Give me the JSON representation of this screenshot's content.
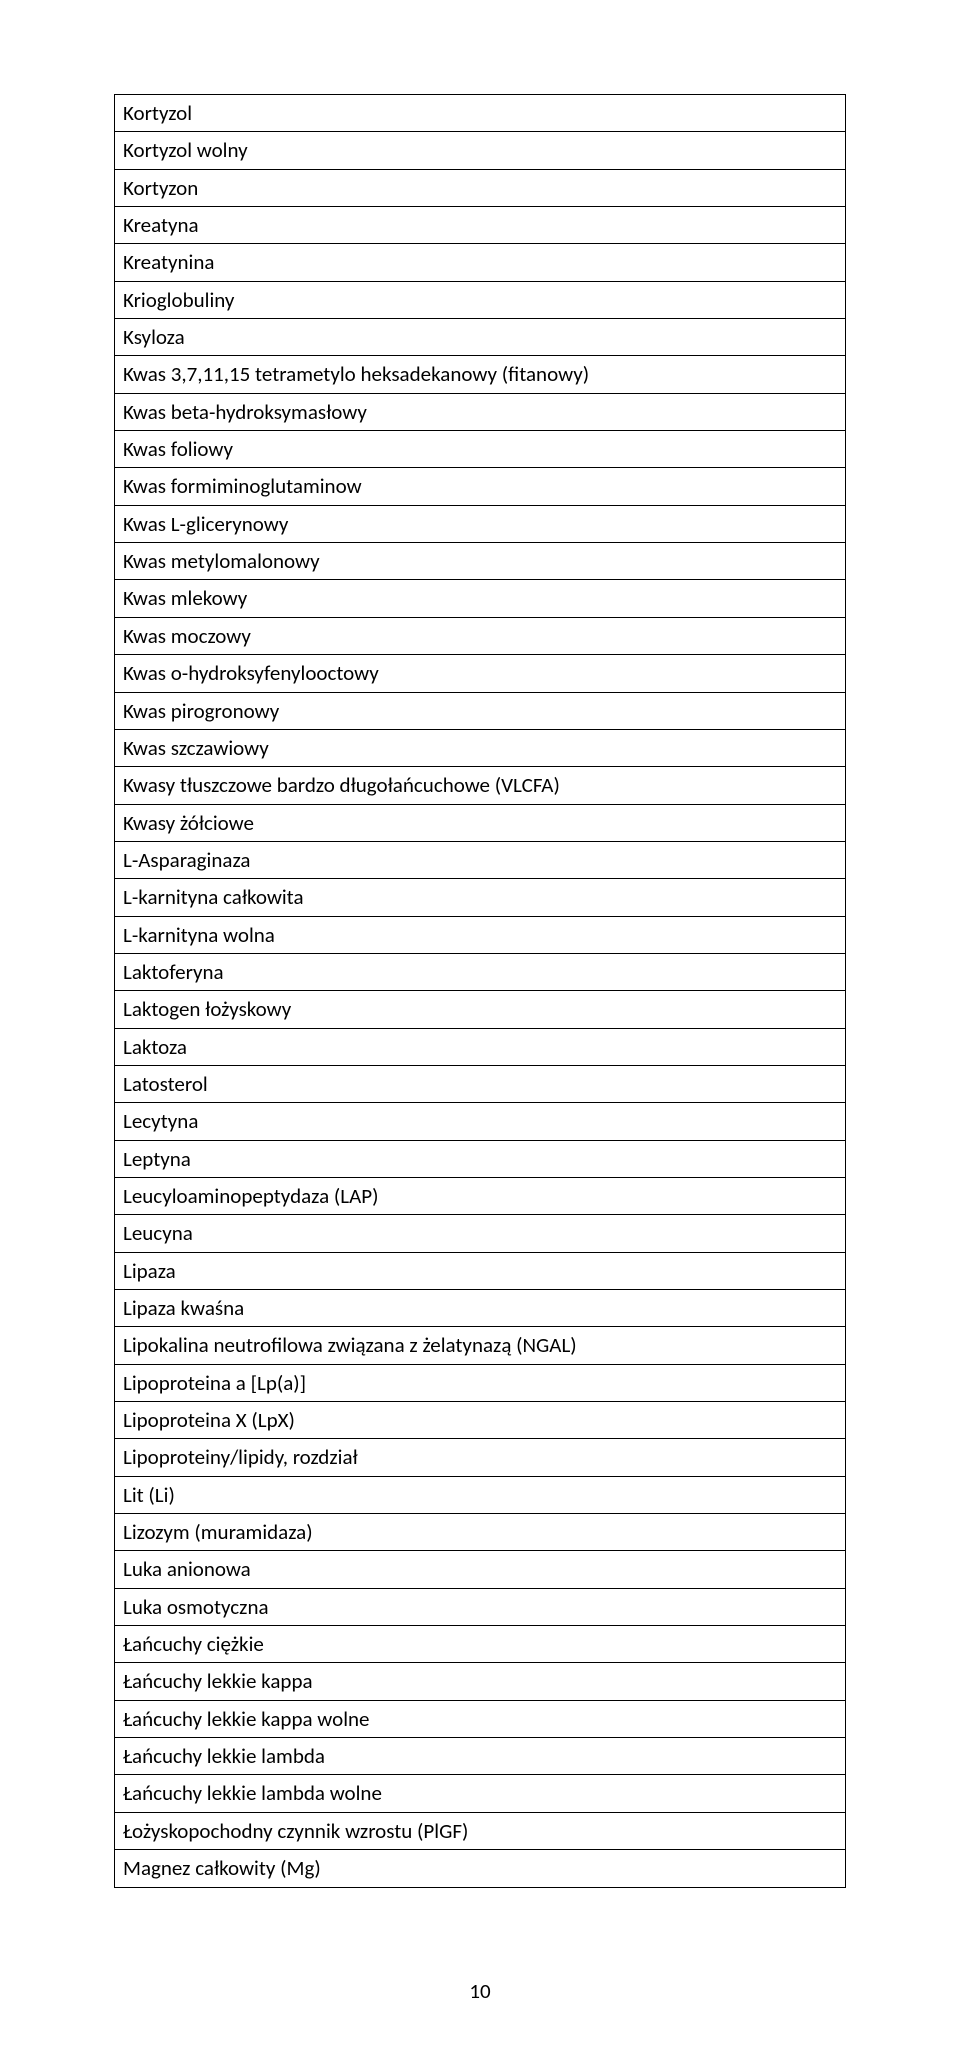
{
  "page_number": "10",
  "rows": [
    {
      "text": "Kortyzol",
      "indent": false
    },
    {
      "text": "Kortyzol wolny",
      "indent": false
    },
    {
      "text": "Kortyzon",
      "indent": false
    },
    {
      "text": "Kreatyna",
      "indent": false
    },
    {
      "text": "Kreatynina",
      "indent": false
    },
    {
      "text": "Krioglobuliny",
      "indent": false
    },
    {
      "text": "Ksyloza",
      "indent": false
    },
    {
      "text": "Kwas 3,7,11,15 tetrametylo heksadekanowy (fitanowy)",
      "indent": false
    },
    {
      "text": "Kwas beta-hydroksymasłowy",
      "indent": false
    },
    {
      "text": "Kwas foliowy",
      "indent": false
    },
    {
      "text": "Kwas formiminoglutaminow",
      "indent": false
    },
    {
      "text": "Kwas L-glicerynowy",
      "indent": false
    },
    {
      "text": "Kwas metylomalonowy",
      "indent": false
    },
    {
      "text": "Kwas mlekowy",
      "indent": false
    },
    {
      "text": "Kwas moczowy",
      "indent": false
    },
    {
      "text": "Kwas o-hydroksyfenylooctowy",
      "indent": false
    },
    {
      "text": "Kwas pirogronowy",
      "indent": false
    },
    {
      "text": "Kwas szczawiowy",
      "indent": false
    },
    {
      "text": "Kwasy tłuszczowe bardzo długołańcuchowe (VLCFA)",
      "indent": false
    },
    {
      "text": "Kwasy żółciowe",
      "indent": false
    },
    {
      "text": "L-Asparaginaza",
      "indent": false
    },
    {
      "text": "L-karnityna całkowita",
      "indent": false
    },
    {
      "text": "L-karnityna wolna",
      "indent": false
    },
    {
      "text": "Laktoferyna",
      "indent": false
    },
    {
      "text": "Laktogen łożyskowy",
      "indent": false
    },
    {
      "text": "Laktoza",
      "indent": false
    },
    {
      "text": "Latosterol",
      "indent": false
    },
    {
      "text": "Lecytyna",
      "indent": false
    },
    {
      "text": "Leptyna",
      "indent": false
    },
    {
      "text": "Leucyloaminopeptydaza (LAP)",
      "indent": false
    },
    {
      "text": "Leucyna",
      "indent": false
    },
    {
      "text": "Lipaza",
      "indent": false
    },
    {
      "text": "Lipaza kwaśna",
      "indent": false
    },
    {
      "text": "Lipokalina neutrofilowa związana z żelatynazą (NGAL)",
      "indent": false
    },
    {
      "text": "Lipoproteina a [Lp(a)]",
      "indent": true
    },
    {
      "text": "Lipoproteina X (LpX)",
      "indent": false
    },
    {
      "text": "Lipoproteiny/lipidy, rozdział",
      "indent": false
    },
    {
      "text": "Lit (Li)",
      "indent": false
    },
    {
      "text": "Lizozym (muramidaza)",
      "indent": false
    },
    {
      "text": "Luka anionowa",
      "indent": false
    },
    {
      "text": "Luka osmotyczna",
      "indent": false
    },
    {
      "text": "Łańcuchy ciężkie",
      "indent": false
    },
    {
      "text": "Łańcuchy lekkie kappa",
      "indent": false
    },
    {
      "text": "Łańcuchy lekkie kappa wolne",
      "indent": false
    },
    {
      "text": "Łańcuchy lekkie lambda",
      "indent": false
    },
    {
      "text": "Łańcuchy lekkie lambda wolne",
      "indent": false
    },
    {
      "text": "Łożyskopochodny czynnik wzrostu (PlGF)",
      "indent": false
    },
    {
      "text": "Magnez całkowity (Mg)",
      "indent": false
    }
  ]
}
